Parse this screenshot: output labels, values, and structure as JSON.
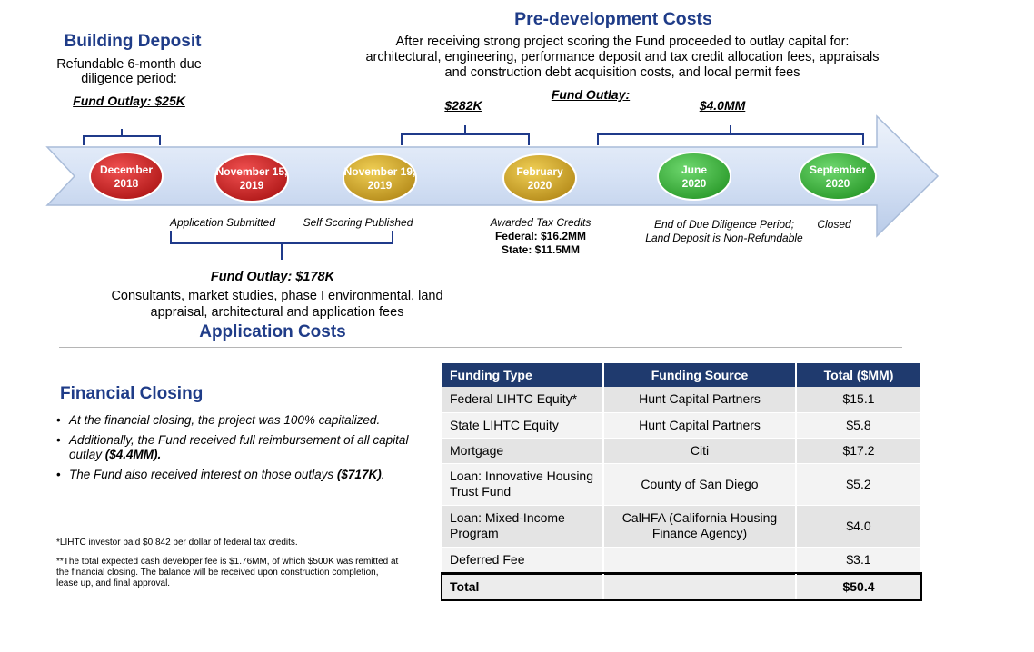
{
  "building_deposit": {
    "title": "Building Deposit",
    "description": "Refundable 6-month due diligence period:",
    "outlay": "Fund Outlay: $25K"
  },
  "predevelopment": {
    "title": "Pre-development Costs",
    "description": "After receiving strong project scoring the Fund proceeded to outlay capital for: architectural, engineering, performance deposit and tax credit allocation fees, appraisals and construction debt acquisition costs, and local permit fees",
    "outlay_label": "Fund Outlay:",
    "amount_1": "$282K",
    "amount_2": "$4.0MM"
  },
  "milestones": [
    {
      "line1": "December",
      "line2": "2018",
      "color": "#d32424"
    },
    {
      "line1": "November 15,",
      "line2": "2019",
      "color": "#d32424"
    },
    {
      "line1": "November 19,",
      "line2": "2019",
      "color": "#d4a92a"
    },
    {
      "line1": "February",
      "line2": "2020",
      "color": "#d4a92a"
    },
    {
      "line1": "June",
      "line2": "2020",
      "color": "#3cb43c"
    },
    {
      "line1": "September",
      "line2": "2020",
      "color": "#3cb43c"
    }
  ],
  "milestone_labels": {
    "application_submitted": "Application Submitted",
    "self_scoring": "Self Scoring Published",
    "awarded": "Awarded Tax Credits",
    "federal": "Federal: $16.2MM",
    "state": "State: $11.5MM",
    "due_diligence_1": "End of Due Diligence Period;",
    "due_diligence_2": "Land Deposit is Non-Refundable",
    "closed": "Closed"
  },
  "application_costs": {
    "outlay": "Fund Outlay: $178K",
    "description": "Consultants, market studies, phase I environmental, land appraisal, architectural and application fees",
    "title": "Application Costs"
  },
  "financial_closing": {
    "title": "Financial Closing",
    "bullet_1": "At the financial closing, the project was 100% capitalized.",
    "bullet_2_pre": "Additionally, the Fund received full reimbursement of all capital outlay ",
    "bullet_2_bold": "($4.4MM).",
    "bullet_3_pre": "The Fund also received interest on those outlays ",
    "bullet_3_bold": "($717K)",
    "bullet_3_post": "."
  },
  "footnotes": {
    "note_1": "*LIHTC investor paid $0.842 per dollar of federal tax credits.",
    "note_2": "**The total expected cash developer fee is $1.76MM, of which $500K was remitted at the financial closing. The balance will be received upon construction completion, lease up, and final approval."
  },
  "table": {
    "headers": [
      "Funding Type",
      "Funding Source",
      "Total ($MM)"
    ],
    "rows": [
      [
        "Federal LIHTC Equity*",
        "Hunt Capital Partners",
        "$15.1"
      ],
      [
        "State LIHTC Equity",
        "Hunt Capital Partners",
        "$5.8"
      ],
      [
        "Mortgage",
        "Citi",
        "$17.2"
      ],
      [
        "Loan: Innovative Housing Trust Fund",
        "County of San Diego",
        "$5.2"
      ],
      [
        "Loan: Mixed-Income Program",
        "CalHFA (California Housing Finance Agency)",
        "$4.0"
      ],
      [
        "Deferred Fee",
        "",
        "$3.1"
      ]
    ],
    "total": [
      "Total",
      "",
      "$50.4"
    ]
  },
  "colors": {
    "navy": "#1f3c88",
    "table_header": "#1f3a6e",
    "arrow_fill": "#d6e2f5"
  }
}
